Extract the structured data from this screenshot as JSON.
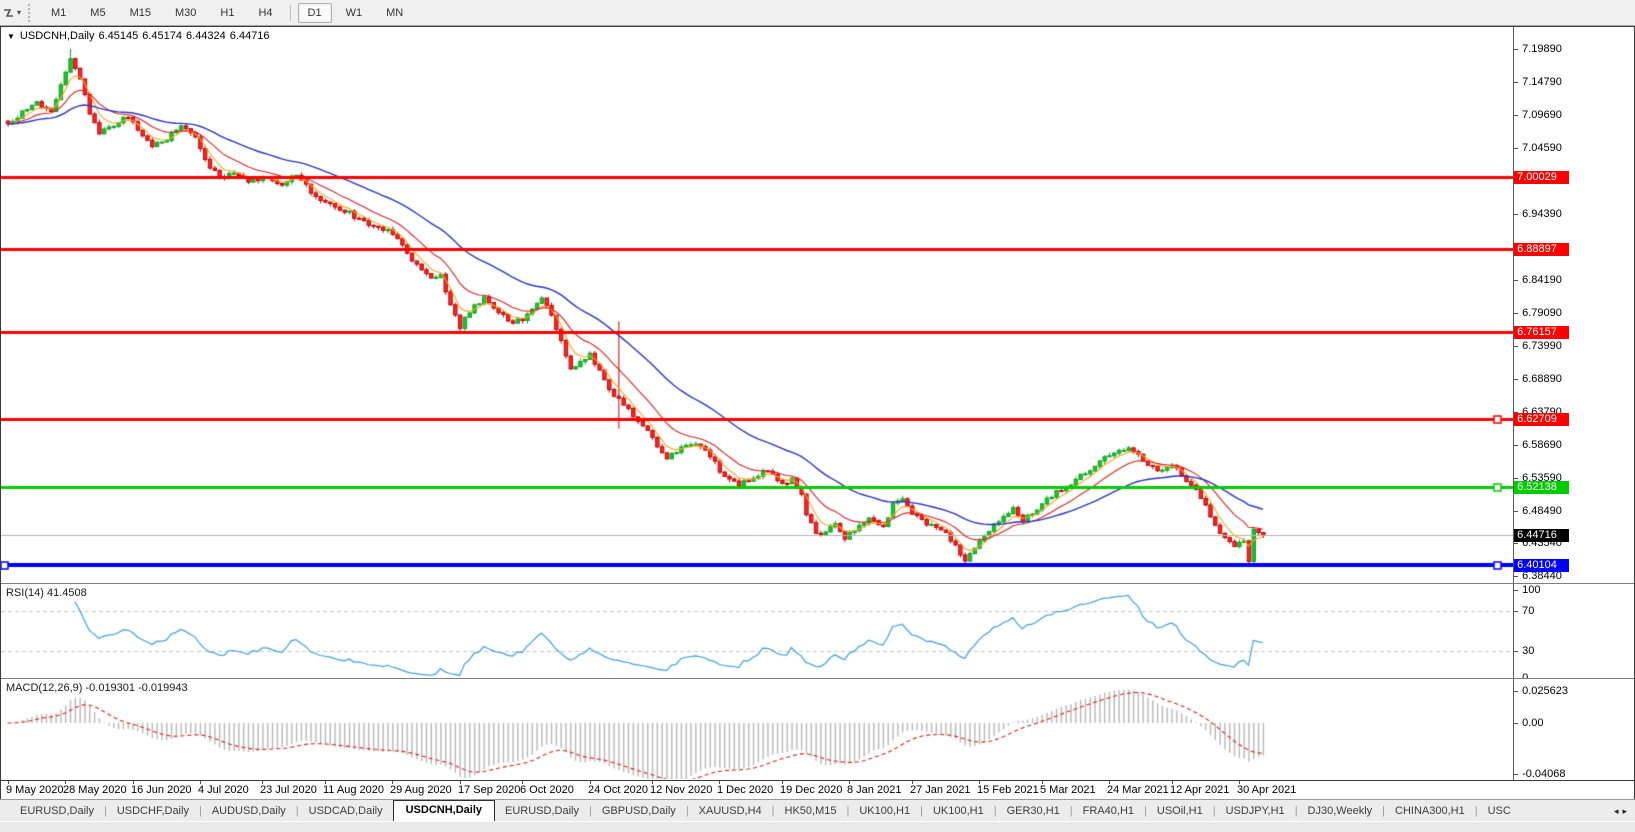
{
  "toolbar": {
    "tools_icon": "chart-cursor-icon",
    "timeframes": [
      {
        "label": "M1",
        "active": false
      },
      {
        "label": "M5",
        "active": false
      },
      {
        "label": "M15",
        "active": false
      },
      {
        "label": "M30",
        "active": false
      },
      {
        "label": "H1",
        "active": false
      },
      {
        "label": "H4",
        "active": false
      },
      {
        "label": "D1",
        "active": true
      },
      {
        "label": "W1",
        "active": false
      },
      {
        "label": "MN",
        "active": false
      }
    ]
  },
  "window": {
    "collapse_icon": "down-triangle",
    "symbol": "USDCNH,Daily",
    "quotes": {
      "open": "6.45145",
      "high": "6.45174",
      "low": "6.44324",
      "close": "6.44716"
    }
  },
  "indicators": {
    "rsi": {
      "label": "RSI(14)",
      "value": "41.4508",
      "levels": [
        70,
        30
      ],
      "axis_ticks": [
        "100",
        "70",
        "30",
        "0"
      ]
    },
    "macd": {
      "label": "MACD(12,26,9)",
      "main_value": "-0.019301",
      "signal_value": "-0.019943",
      "axis_ticks": [
        "0.025623",
        "0.00",
        "-0.04068"
      ]
    }
  },
  "chart_data": [
    {
      "type": "candlestick",
      "symbol": "USDCNH",
      "timeframe": "Daily",
      "bars_total": 262,
      "y_range": [
        6.373,
        7.2329
      ],
      "y_ticks": [
        "7.19890",
        "7.14790",
        "7.09690",
        "7.04590",
        "6.94390",
        "6.84190",
        "6.79090",
        "6.73990",
        "6.68890",
        "6.63790",
        "6.58690",
        "6.53590",
        "6.48490",
        "6.43540",
        "6.38440"
      ],
      "x_labels": [
        {
          "text": "9 May 2020",
          "bar": 0
        },
        {
          "text": "28 May 2020",
          "bar": 12
        },
        {
          "text": "16 Jun 2020",
          "bar": 26
        },
        {
          "text": "4 Jul 2020",
          "bar": 40
        },
        {
          "text": "23 Jul 2020",
          "bar": 53
        },
        {
          "text": "11 Aug 2020",
          "bar": 66
        },
        {
          "text": "29 Aug 2020",
          "bar": 80
        },
        {
          "text": "17 Sep 2020",
          "bar": 94
        },
        {
          "text": "6 Oct 2020",
          "bar": 107
        },
        {
          "text": "24 Oct 2020",
          "bar": 121
        },
        {
          "text": "12 Nov 2020",
          "bar": 134
        },
        {
          "text": "1 Dec 2020",
          "bar": 148
        },
        {
          "text": "19 Dec 2020",
          "bar": 161
        },
        {
          "text": "8 Jan 2021",
          "bar": 175
        },
        {
          "text": "27 Jan 2021",
          "bar": 188
        },
        {
          "text": "15 Feb 2021",
          "bar": 202
        },
        {
          "text": "5 Mar 2021",
          "bar": 215
        },
        {
          "text": "24 Mar 2021",
          "bar": 229
        },
        {
          "text": "12 Apr 2021",
          "bar": 242
        },
        {
          "text": "30 Apr 2021",
          "bar": 256
        }
      ],
      "price_anchors": [
        [
          0,
          7.085
        ],
        [
          3,
          7.1
        ],
        [
          6,
          7.115
        ],
        [
          9,
          7.105
        ],
        [
          12,
          7.16
        ],
        [
          13,
          7.185
        ],
        [
          15,
          7.15
        ],
        [
          17,
          7.1
        ],
        [
          19,
          7.07
        ],
        [
          22,
          7.08
        ],
        [
          25,
          7.095
        ],
        [
          27,
          7.075
        ],
        [
          30,
          7.05
        ],
        [
          33,
          7.06
        ],
        [
          36,
          7.083
        ],
        [
          39,
          7.06
        ],
        [
          41,
          7.025
        ],
        [
          44,
          7.0
        ],
        [
          47,
          7.007
        ],
        [
          50,
          6.995
        ],
        [
          54,
          7.001
        ],
        [
          57,
          6.988
        ],
        [
          60,
          7.005
        ],
        [
          63,
          6.978
        ],
        [
          66,
          6.962
        ],
        [
          68,
          6.952
        ],
        [
          71,
          6.945
        ],
        [
          74,
          6.932
        ],
        [
          77,
          6.921
        ],
        [
          80,
          6.916
        ],
        [
          82,
          6.895
        ],
        [
          84,
          6.872
        ],
        [
          86,
          6.856
        ],
        [
          88,
          6.843
        ],
        [
          90,
          6.851
        ],
        [
          92,
          6.802
        ],
        [
          94,
          6.768
        ],
        [
          95,
          6.782
        ],
        [
          97,
          6.801
        ],
        [
          99,
          6.815
        ],
        [
          101,
          6.8
        ],
        [
          103,
          6.786
        ],
        [
          105,
          6.776
        ],
        [
          107,
          6.781
        ],
        [
          109,
          6.8
        ],
        [
          111,
          6.812
        ],
        [
          113,
          6.79
        ],
        [
          115,
          6.746
        ],
        [
          117,
          6.706
        ],
        [
          119,
          6.716
        ],
        [
          121,
          6.726
        ],
        [
          123,
          6.7
        ],
        [
          125,
          6.672
        ],
        [
          127,
          6.656
        ],
        [
          129,
          6.641
        ],
        [
          131,
          6.626
        ],
        [
          133,
          6.611
        ],
        [
          135,
          6.586
        ],
        [
          137,
          6.568
        ],
        [
          139,
          6.576
        ],
        [
          141,
          6.589
        ],
        [
          143,
          6.591
        ],
        [
          145,
          6.581
        ],
        [
          147,
          6.561
        ],
        [
          148,
          6.546
        ],
        [
          150,
          6.533
        ],
        [
          152,
          6.526
        ],
        [
          154,
          6.531
        ],
        [
          156,
          6.541
        ],
        [
          158,
          6.546
        ],
        [
          160,
          6.533
        ],
        [
          161,
          6.526
        ],
        [
          163,
          6.534
        ],
        [
          165,
          6.511
        ],
        [
          166,
          6.481
        ],
        [
          168,
          6.449
        ],
        [
          170,
          6.453
        ],
        [
          172,
          6.463
        ],
        [
          174,
          6.441
        ],
        [
          176,
          6.456
        ],
        [
          178,
          6.469
        ],
        [
          180,
          6.473
        ],
        [
          182,
          6.459
        ],
        [
          184,
          6.496
        ],
        [
          186,
          6.501
        ],
        [
          188,
          6.483
        ],
        [
          190,
          6.472
        ],
        [
          193,
          6.456
        ],
        [
          195,
          6.449
        ],
        [
          197,
          6.431
        ],
        [
          199,
          6.409
        ],
        [
          201,
          6.424
        ],
        [
          203,
          6.446
        ],
        [
          205,
          6.463
        ],
        [
          207,
          6.473
        ],
        [
          209,
          6.487
        ],
        [
          211,
          6.471
        ],
        [
          213,
          6.479
        ],
        [
          215,
          6.499
        ],
        [
          217,
          6.509
        ],
        [
          219,
          6.519
        ],
        [
          221,
          6.528
        ],
        [
          223,
          6.538
        ],
        [
          225,
          6.549
        ],
        [
          227,
          6.562
        ],
        [
          229,
          6.571
        ],
        [
          231,
          6.577
        ],
        [
          233,
          6.579
        ],
        [
          235,
          6.571
        ],
        [
          237,
          6.557
        ],
        [
          239,
          6.546
        ],
        [
          241,
          6.555
        ],
        [
          243,
          6.553
        ],
        [
          245,
          6.531
        ],
        [
          247,
          6.519
        ],
        [
          249,
          6.491
        ],
        [
          251,
          6.463
        ],
        [
          253,
          6.444
        ],
        [
          255,
          6.429
        ],
        [
          257,
          6.438
        ],
        [
          258,
          6.406
        ],
        [
          259,
          6.456
        ],
        [
          260,
          6.451
        ],
        [
          261,
          6.447
        ]
      ],
      "spikes": [
        {
          "bar": 13,
          "high": 7.1989
        },
        {
          "bar": 127,
          "high": 6.778,
          "low": 6.612
        },
        {
          "bar": 199,
          "low": 6.399
        },
        {
          "bar": 258,
          "low": 6.398
        }
      ],
      "last_bar": {
        "open": 6.45145,
        "high": 6.45174,
        "low": 6.44324,
        "close": 6.44716
      },
      "hlines": [
        {
          "value": 7.00029,
          "label": "7.00029",
          "color": "#ff0000",
          "width": 3,
          "handles": []
        },
        {
          "value": 6.88897,
          "label": "6.88897",
          "color": "#ff0000",
          "width": 3,
          "handles": []
        },
        {
          "value": 6.76157,
          "label": "6.76157",
          "color": "#ff0000",
          "width": 3,
          "handles": []
        },
        {
          "value": 6.62709,
          "label": "6.62709",
          "color": "#ff0000",
          "width": 3,
          "handles": [
            "right"
          ]
        },
        {
          "value": 6.52138,
          "label": "6.52138",
          "color": "#00cc00",
          "width": 3,
          "handles": [
            "right"
          ]
        },
        {
          "value": 6.40104,
          "label": "6.40104",
          "color": "#0000ff",
          "width": 4,
          "handles": [
            "left",
            "right"
          ]
        }
      ],
      "current_price": {
        "value": 6.44716,
        "label": "6.44716",
        "line_color": "#b4b4b4",
        "label_bg": "#000000"
      },
      "moving_averages": [
        {
          "name": "ma-fast",
          "period": 5,
          "color": "#f5a623"
        },
        {
          "name": "ma-mid",
          "period": 13,
          "color": "#dd2222"
        },
        {
          "name": "ma-slow",
          "period": 34,
          "color": "#2b35c8"
        }
      ],
      "colors": {
        "bull": "#23c133",
        "bull_edge": "#0ea51e",
        "bear": "#f52a2a",
        "bear_edge": "#c80000"
      }
    },
    {
      "type": "line",
      "name": "RSI(14)",
      "current_value": 41.4508,
      "range": [
        0,
        100
      ],
      "levels": [
        70,
        30
      ],
      "color": "#3e9fe8",
      "level_color": "#c8c8c8"
    },
    {
      "type": "macd",
      "name": "MACD(12,26,9)",
      "current_main": -0.019301,
      "current_signal": -0.019943,
      "range": [
        -0.04068,
        0.025623
      ],
      "hist_color": "#b8b8b8",
      "signal_color": "#e02020"
    }
  ],
  "tabs": {
    "items": [
      {
        "label": "EURUSD,Daily",
        "active": false
      },
      {
        "label": "USDCHF,Daily",
        "active": false
      },
      {
        "label": "AUDUSD,Daily",
        "active": false
      },
      {
        "label": "USDCAD,Daily",
        "active": false
      },
      {
        "label": "USDCNH,Daily",
        "active": true
      },
      {
        "label": "EURUSD,Daily",
        "active": false
      },
      {
        "label": "GBPUSD,Daily",
        "active": false
      },
      {
        "label": "XAUUSD,H4",
        "active": false
      },
      {
        "label": "HK50,M15",
        "active": false
      },
      {
        "label": "UK100,H1",
        "active": false
      },
      {
        "label": "UK100,H1",
        "active": false
      },
      {
        "label": "GER30,H1",
        "active": false
      },
      {
        "label": "FRA40,H1",
        "active": false
      },
      {
        "label": "USOil,H1",
        "active": false
      },
      {
        "label": "USDJPY,H1",
        "active": false
      },
      {
        "label": "DJ30,Weekly",
        "active": false
      },
      {
        "label": "CHINA300,H1",
        "active": false
      },
      {
        "label": "USC",
        "active": false
      }
    ],
    "scroll_left_icon": "◂",
    "scroll_right_icon": "▸"
  }
}
